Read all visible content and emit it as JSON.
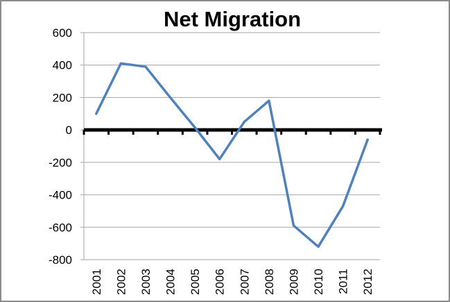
{
  "chart_data": {
    "type": "line",
    "title": "Net Migration",
    "xlabel": "",
    "ylabel": "",
    "categories": [
      "2001",
      "2002",
      "2003",
      "2004",
      "2005",
      "2006",
      "2007",
      "2008",
      "2009",
      "2010",
      "2011",
      "2012"
    ],
    "series": [
      {
        "values": [
          100,
          410,
          390,
          200,
          15,
          -180,
          50,
          180,
          -590,
          -720,
          -470,
          -60
        ]
      }
    ],
    "ylim": [
      -800,
      600
    ],
    "yticks": [
      600,
      400,
      200,
      0,
      -200,
      -400,
      -600,
      -800
    ],
    "ytick_labels": [
      "600",
      "400",
      "200",
      "0",
      "-200",
      "-400",
      "-600",
      "-800"
    ],
    "grid": true,
    "legend": "none",
    "colors": {
      "line": "#4f81bd",
      "zero_line": "#000000",
      "grid": "#a6a6a6",
      "frame": "#8c8c8c"
    }
  }
}
